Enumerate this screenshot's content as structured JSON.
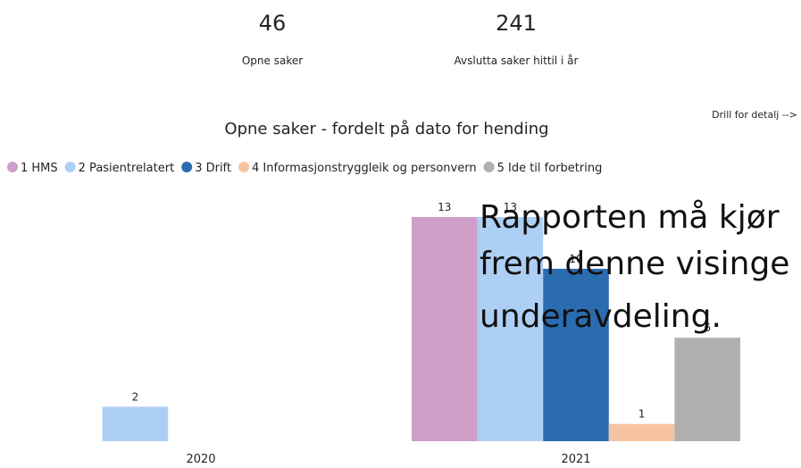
{
  "kpis": [
    {
      "value": 46,
      "label": "Opne saker"
    },
    {
      "value": 241,
      "label": "Avslutta saker hittil i år"
    }
  ],
  "drill_text": "Drill for detalj -->",
  "overlay_text": [
    "Rapporten må kjør",
    "frem denne visinge",
    "underavdeling."
  ],
  "chart_data": {
    "type": "bar",
    "title": "Opne saker - fordelt på dato for hending",
    "categories": [
      "2020",
      "2021"
    ],
    "series": [
      {
        "name": "1 HMS",
        "color": "#cf9fc9",
        "values": [
          null,
          13
        ]
      },
      {
        "name": "2 Pasientrelatert",
        "color": "#aecff4",
        "values": [
          2,
          13
        ]
      },
      {
        "name": "3 Drift",
        "color": "#2b6cb0",
        "values": [
          null,
          10
        ]
      },
      {
        "name": "4 Informasjonstryggleik og personvern",
        "color": "#f6c3a0",
        "values": [
          null,
          1
        ]
      },
      {
        "name": "5 Ide til forbetring",
        "color": "#b0b0b0",
        "values": [
          null,
          6
        ]
      }
    ],
    "legend": "top-left",
    "grid": false
  }
}
